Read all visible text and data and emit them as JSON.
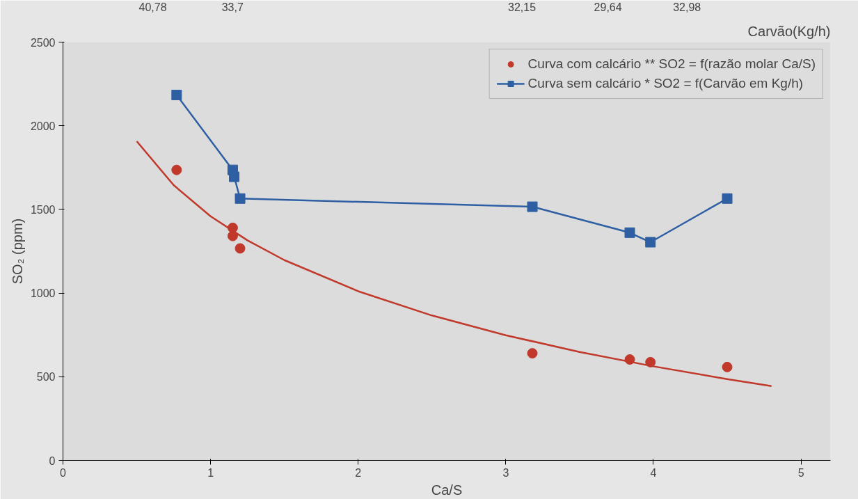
{
  "chart_data": {
    "type": "scatter",
    "xlabel": "Ca/S",
    "ylabel": "SO₂ (ppm)",
    "x2label": "Carvão(Kg/h)",
    "xlim": [
      0,
      5.2
    ],
    "xticks": [
      0,
      1,
      2,
      3,
      4,
      5
    ],
    "ylim": [
      0,
      2500
    ],
    "yticks": [
      0,
      500,
      1000,
      1500,
      2000,
      2500
    ],
    "annotations": [
      "40,78",
      "33,7",
      "32,15",
      "29,64",
      "32,98"
    ],
    "grid": false,
    "legend": "top right",
    "series": [
      {
        "name": "Curva com calcário ** SO2 = f(razão molar Ca/S)",
        "marker": "circle",
        "color": "#c0392b",
        "x": [
          0.77,
          1.15,
          1.15,
          1.2,
          3.18,
          3.84,
          3.98,
          4.5
        ],
        "values": [
          1736,
          1390,
          1341,
          1267,
          640,
          603,
          587,
          558
        ]
      },
      {
        "name": "Curva sem calcário * SO2 = f(Carvão em Kg/h)",
        "type": "line",
        "marker": "square",
        "line_style": "solid",
        "color": "#2e5fa3",
        "x": [
          0.77,
          1.15,
          1.16,
          1.2,
          3.18,
          3.84,
          3.98,
          4.5
        ],
        "values": [
          2184,
          1736,
          1695,
          1565,
          1516,
          1361,
          1304,
          1565
        ]
      },
      {
        "type": "line",
        "marker": "none",
        "line_style": "solid",
        "color": "#c0392b",
        "x": [
          0.5,
          0.75,
          1,
          1.25,
          1.5,
          2,
          2.5,
          3,
          3.5,
          4,
          4.5,
          4.8
        ],
        "values": [
          1907,
          1645,
          1459,
          1315,
          1197,
          1011,
          866,
          748,
          648,
          562,
          486,
          444
        ]
      }
    ]
  }
}
